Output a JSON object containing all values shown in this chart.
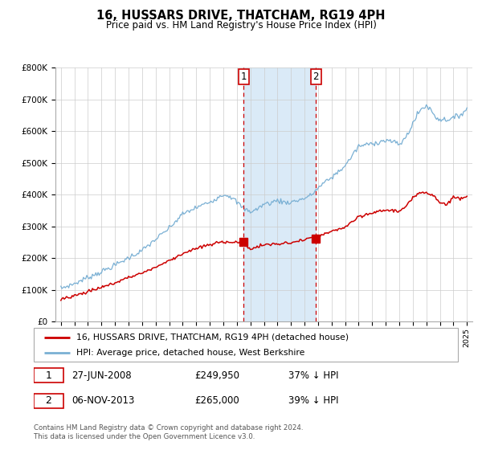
{
  "title": "16, HUSSARS DRIVE, THATCHAM, RG19 4PH",
  "subtitle": "Price paid vs. HM Land Registry's House Price Index (HPI)",
  "legend_line1": "16, HUSSARS DRIVE, THATCHAM, RG19 4PH (detached house)",
  "legend_line2": "HPI: Average price, detached house, West Berkshire",
  "marker1_date": "27-JUN-2008",
  "marker1_price": 249950,
  "marker1_label": "37% ↓ HPI",
  "marker2_date": "06-NOV-2013",
  "marker2_price": 265000,
  "marker2_label": "39% ↓ HPI",
  "footer_line1": "Contains HM Land Registry data © Crown copyright and database right 2024.",
  "footer_line2": "This data is licensed under the Open Government Licence v3.0.",
  "red_color": "#cc0000",
  "shading_color": "#daeaf7",
  "vline_color": "#cc0000",
  "grid_color": "#cccccc",
  "ylim": [
    0,
    800000
  ],
  "yticks": [
    0,
    100000,
    200000,
    300000,
    400000,
    500000,
    600000,
    700000,
    800000
  ],
  "ytick_labels": [
    "£0",
    "£100K",
    "£200K",
    "£300K",
    "£400K",
    "£500K",
    "£600K",
    "£700K",
    "£800K"
  ],
  "marker1_x": 2008.5,
  "marker2_x": 2013.84,
  "hpi_color": "#7ab0d4",
  "box_edge_color": "#cc0000",
  "legend_edge_color": "#aaaaaa",
  "annotation_text_color": "#222222",
  "footer_color": "#555555"
}
